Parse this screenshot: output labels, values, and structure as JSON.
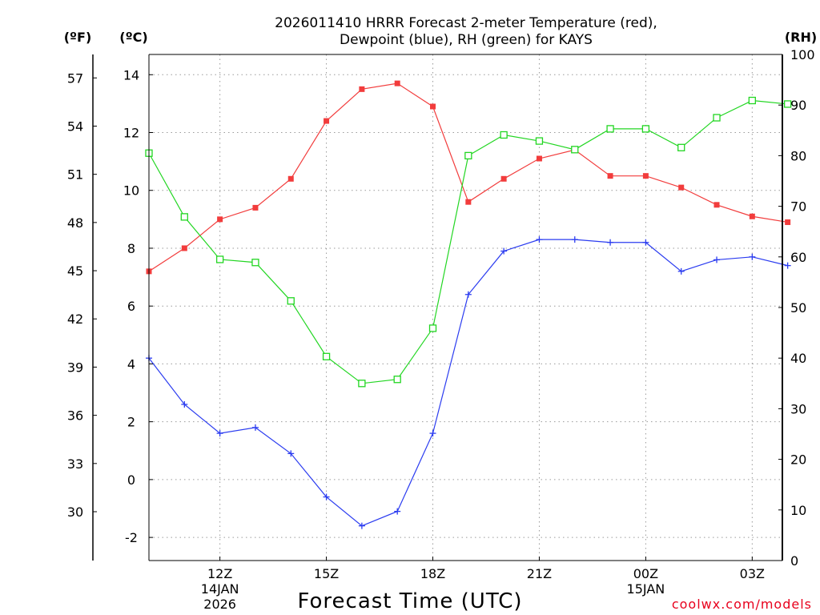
{
  "chart_data": {
    "type": "line",
    "title_line1": "2026011410 HRRR Forecast 2-meter Temperature (red),",
    "title_line2": "Dewpoint (blue), RH (green) for KAYS",
    "unit_f": "(ºF)",
    "unit_c": "(ºC)",
    "unit_rh": "(RH)",
    "xlabel": "Forecast Time (UTC)",
    "credit": "coolwx.com/models",
    "x_hours": [
      10,
      11,
      12,
      13,
      14,
      15,
      16,
      17,
      18,
      19,
      20,
      21,
      22,
      23,
      24,
      25,
      26,
      27,
      28
    ],
    "xlim": [
      10,
      27.85
    ],
    "x_ticks": [
      {
        "hour": 12,
        "label": "12Z",
        "date": "14JAN",
        "year": "2026"
      },
      {
        "hour": 15,
        "label": "15Z"
      },
      {
        "hour": 18,
        "label": "18Z"
      },
      {
        "hour": 21,
        "label": "21Z"
      },
      {
        "hour": 24,
        "label": "00Z",
        "date": "15JAN"
      },
      {
        "hour": 27,
        "label": "03Z"
      }
    ],
    "ylim_c": [
      -2.8,
      14.7
    ],
    "ticks_c": [
      "-2",
      "0",
      "2",
      "4",
      "6",
      "8",
      "10",
      "12",
      "14"
    ],
    "ticks_f": [
      "30",
      "33",
      "36",
      "39",
      "42",
      "45",
      "48",
      "51",
      "54",
      "57"
    ],
    "ylim_rh": [
      0,
      100
    ],
    "ticks_rh": [
      "0",
      "10",
      "20",
      "30",
      "40",
      "50",
      "60",
      "70",
      "80",
      "90",
      "100"
    ],
    "series": [
      {
        "name": "Temperature",
        "axis": "c",
        "color": "#f23c3c",
        "marker": "filled-square",
        "values": [
          7.2,
          8.0,
          9.0,
          9.4,
          10.4,
          12.4,
          13.5,
          13.7,
          12.9,
          9.6,
          10.4,
          11.1,
          11.4,
          10.5,
          10.5,
          10.1,
          9.5,
          9.1,
          8.9
        ]
      },
      {
        "name": "Dewpoint",
        "axis": "c",
        "color": "#2b3cf0",
        "marker": "plus",
        "values": [
          4.2,
          2.6,
          1.6,
          1.8,
          0.9,
          -0.6,
          -1.6,
          -1.1,
          1.6,
          6.4,
          7.9,
          8.3,
          8.3,
          8.2,
          8.2,
          7.2,
          7.6,
          7.7,
          7.4
        ]
      },
      {
        "name": "RH",
        "axis": "rh",
        "color": "#22d622",
        "marker": "open-square",
        "values": [
          80.5,
          67.9,
          59.5,
          58.9,
          51.3,
          40.3,
          35.0,
          35.8,
          45.9,
          80.0,
          84.1,
          82.9,
          81.2,
          85.3,
          85.3,
          81.6,
          87.5,
          90.9,
          90.2
        ]
      }
    ]
  }
}
